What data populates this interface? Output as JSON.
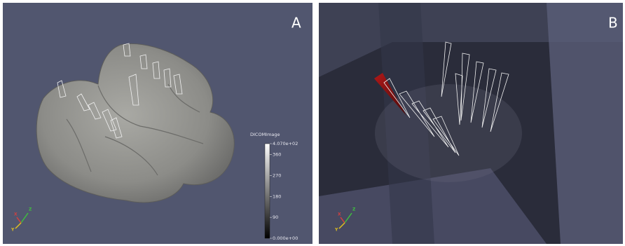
{
  "panels": [
    {
      "label": "A",
      "colorbar": {
        "title": "DICOMImage",
        "range": [
          0,
          407
        ],
        "ticks": [
          {
            "value": 407,
            "label": "4.070e+02"
          },
          360,
          270,
          180,
          90,
          {
            "value": 0,
            "label": "0.000e+00"
          }
        ]
      },
      "axes": [
        "X",
        "Y",
        "Z"
      ]
    },
    {
      "label": "B",
      "axes": [
        "X",
        "Y",
        "Z"
      ]
    }
  ]
}
